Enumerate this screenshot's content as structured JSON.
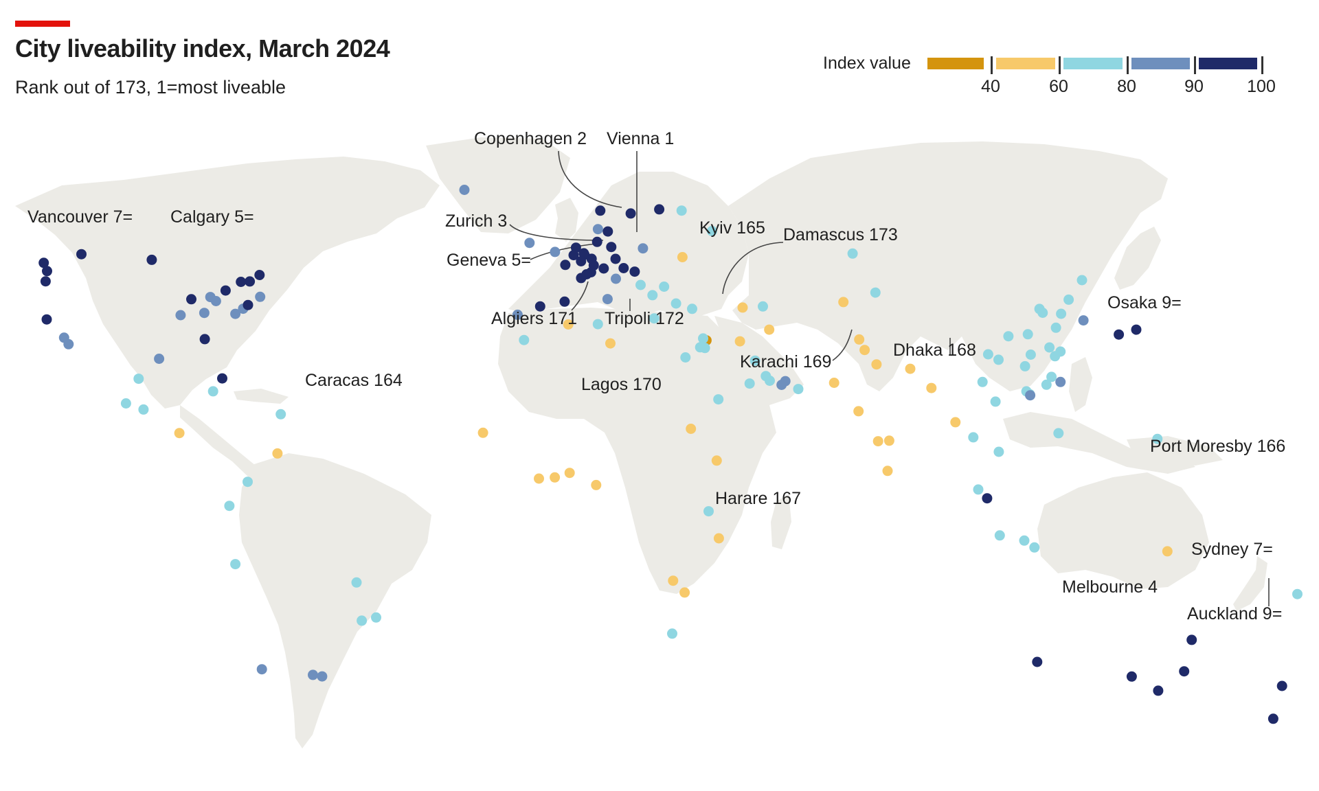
{
  "title": "City liveability index, March 2024",
  "subtitle": "Rank out of 173, 1=most liveable",
  "colors": {
    "accent": "#e3120b",
    "land": "#ecebe6",
    "band_lt40": "#d4940e",
    "band_40_60": "#f7c96a",
    "band_60_80": "#8fd6e1",
    "band_80_90": "#6e8fbd",
    "band_90_100": "#1f2a68"
  },
  "legend": {
    "title": "Index value",
    "ticks": [
      "40",
      "60",
      "80",
      "90",
      "100"
    ],
    "bands": [
      "lt40",
      "40_60",
      "60_80",
      "80_90",
      "90_100"
    ]
  },
  "labeled_cities": [
    {
      "city": "Vienna",
      "rank": "1"
    },
    {
      "city": "Copenhagen",
      "rank": "2"
    },
    {
      "city": "Zurich",
      "rank": "3"
    },
    {
      "city": "Melbourne",
      "rank": "4"
    },
    {
      "city": "Calgary",
      "rank": "5="
    },
    {
      "city": "Geneva",
      "rank": "5="
    },
    {
      "city": "Vancouver",
      "rank": "7="
    },
    {
      "city": "Sydney",
      "rank": "7="
    },
    {
      "city": "Osaka",
      "rank": "9="
    },
    {
      "city": "Auckland",
      "rank": "9="
    },
    {
      "city": "Caracas",
      "rank": "164"
    },
    {
      "city": "Kyiv",
      "rank": "165"
    },
    {
      "city": "Port Moresby",
      "rank": "166"
    },
    {
      "city": "Harare",
      "rank": "167"
    },
    {
      "city": "Dhaka",
      "rank": "168"
    },
    {
      "city": "Karachi",
      "rank": "169"
    },
    {
      "city": "Lagos",
      "rank": "170"
    },
    {
      "city": "Algiers",
      "rank": "171"
    },
    {
      "city": "Tripoli",
      "rank": "172"
    },
    {
      "city": "Damascus",
      "rank": "173"
    }
  ],
  "labels": {
    "vienna": "Vienna 1",
    "copenhagen": "Copenhagen 2",
    "zurich": "Zurich 3",
    "melbourne": "Melbourne 4",
    "calgary": "Calgary 5=",
    "geneva": "Geneva 5=",
    "vancouver": "Vancouver 7=",
    "sydney": "Sydney 7=",
    "osaka": "Osaka 9=",
    "auckland": "Auckland 9=",
    "caracas": "Caracas 164",
    "kyiv": "Kyiv 165",
    "port_moresby": "Port Moresby 166",
    "harare": "Harare 167",
    "dhaka": "Dhaka 168",
    "karachi": "Karachi 169",
    "lagos": "Lagos 170",
    "algiers": "Algiers 171",
    "tripoli": "Tripoli 172",
    "damascus": "Damascus 173"
  },
  "city_points": [
    {
      "lon": 16.37,
      "lat": 48.21,
      "band": "90_100"
    },
    {
      "lon": 12.57,
      "lat": 55.68,
      "band": "90_100"
    },
    {
      "lon": 8.54,
      "lat": 47.37,
      "band": "90_100"
    },
    {
      "lon": 144.96,
      "lat": -37.81,
      "band": "90_100"
    },
    {
      "lon": -114.07,
      "lat": 51.05,
      "band": "90_100"
    },
    {
      "lon": 6.14,
      "lat": 46.2,
      "band": "90_100"
    },
    {
      "lon": -123.12,
      "lat": 49.28,
      "band": "90_100"
    },
    {
      "lon": 151.21,
      "lat": -33.87,
      "band": "90_100"
    },
    {
      "lon": 135.5,
      "lat": 34.69,
      "band": "90_100"
    },
    {
      "lon": 174.76,
      "lat": -36.85,
      "band": "90_100"
    },
    {
      "lon": 139.69,
      "lat": 35.69,
      "band": "90_100"
    },
    {
      "lon": 4.9,
      "lat": 52.37,
      "band": "90_100"
    },
    {
      "lon": 13.4,
      "lat": 52.52,
      "band": "90_100"
    },
    {
      "lon": 11.58,
      "lat": 48.14,
      "band": "90_100"
    },
    {
      "lon": 8.68,
      "lat": 50.11,
      "band": "90_100"
    },
    {
      "lon": 9.99,
      "lat": 53.55,
      "band": "90_100"
    },
    {
      "lon": 6.96,
      "lat": 50.94,
      "band": "90_100"
    },
    {
      "lon": 6.78,
      "lat": 51.23,
      "band": "90_100"
    },
    {
      "lon": 9.18,
      "lat": 48.78,
      "band": "90_100"
    },
    {
      "lon": 10.75,
      "lat": 59.91,
      "band": "90_100"
    },
    {
      "lon": 18.07,
      "lat": 59.33,
      "band": "90_100"
    },
    {
      "lon": 24.94,
      "lat": 60.17,
      "band": "90_100"
    },
    {
      "lon": 4.35,
      "lat": 50.85,
      "band": "90_100"
    },
    {
      "lon": 6.13,
      "lat": 49.61,
      "band": "90_100"
    },
    {
      "lon": 7.45,
      "lat": 46.95,
      "band": "90_100"
    },
    {
      "lon": 14.42,
      "lat": 50.09,
      "band": "90_100"
    },
    {
      "lon": 19.04,
      "lat": 47.5,
      "band": "90_100"
    },
    {
      "lon": 2.35,
      "lat": 48.86,
      "band": "90_100"
    },
    {
      "lon": 2.17,
      "lat": 41.39,
      "band": "90_100"
    },
    {
      "lon": -3.7,
      "lat": 40.42,
      "band": "90_100"
    },
    {
      "lon": -79.38,
      "lat": 43.65,
      "band": "90_100"
    },
    {
      "lon": -73.57,
      "lat": 45.5,
      "band": "90_100"
    },
    {
      "lon": -75.7,
      "lat": 45.42,
      "band": "90_100"
    },
    {
      "lon": -97.14,
      "lat": 49.9,
      "band": "90_100"
    },
    {
      "lon": -71.21,
      "lat": 46.81,
      "band": "90_100"
    },
    {
      "lon": -87.63,
      "lat": 41.88,
      "band": "90_100"
    },
    {
      "lon": -84.39,
      "lat": 33.75,
      "band": "90_100"
    },
    {
      "lon": -80.19,
      "lat": 25.76,
      "band": "90_100"
    },
    {
      "lon": -74.0,
      "lat": 40.71,
      "band": "90_100"
    },
    {
      "lon": -122.33,
      "lat": 47.61,
      "band": "90_100"
    },
    {
      "lon": -122.68,
      "lat": 45.52,
      "band": "90_100"
    },
    {
      "lon": -122.42,
      "lat": 37.77,
      "band": "90_100"
    },
    {
      "lon": 115.86,
      "lat": -31.95,
      "band": "90_100"
    },
    {
      "lon": 138.6,
      "lat": -34.93,
      "band": "90_100"
    },
    {
      "lon": 153.03,
      "lat": -27.47,
      "band": "90_100"
    },
    {
      "lon": 172.64,
      "lat": -43.53,
      "band": "90_100"
    },
    {
      "lon": 103.82,
      "lat": 1.35,
      "band": "90_100"
    },
    {
      "lon": 10.2,
      "lat": 56.15,
      "band": "80_90"
    },
    {
      "lon": -6.26,
      "lat": 53.35,
      "band": "80_90"
    },
    {
      "lon": -0.13,
      "lat": 51.51,
      "band": "80_90"
    },
    {
      "lon": 21.01,
      "lat": 52.23,
      "band": "80_90"
    },
    {
      "lon": 12.5,
      "lat": 41.9,
      "band": "80_90"
    },
    {
      "lon": -9.14,
      "lat": 38.72,
      "band": "80_90"
    },
    {
      "lon": -21.94,
      "lat": 64.15,
      "band": "80_90"
    },
    {
      "lon": 14.5,
      "lat": 46.05,
      "band": "80_90"
    },
    {
      "lon": -77.04,
      "lat": 38.9,
      "band": "80_90"
    },
    {
      "lon": -71.06,
      "lat": 42.36,
      "band": "80_90"
    },
    {
      "lon": -83.05,
      "lat": 42.33,
      "band": "80_90"
    },
    {
      "lon": -81.69,
      "lat": 41.5,
      "band": "80_90"
    },
    {
      "lon": -84.51,
      "lat": 39.1,
      "band": "80_90"
    },
    {
      "lon": -75.17,
      "lat": 39.95,
      "band": "80_90"
    },
    {
      "lon": -90.2,
      "lat": 38.63,
      "band": "80_90"
    },
    {
      "lon": -95.37,
      "lat": 29.76,
      "band": "80_90"
    },
    {
      "lon": -118.24,
      "lat": 34.05,
      "band": "80_90"
    },
    {
      "lon": -117.16,
      "lat": 32.72,
      "band": "80_90"
    },
    {
      "lon": 55.27,
      "lat": 25.2,
      "band": "80_90"
    },
    {
      "lon": 54.37,
      "lat": 24.45,
      "band": "80_90"
    },
    {
      "lon": 126.98,
      "lat": 37.57,
      "band": "80_90"
    },
    {
      "lon": 121.47,
      "lat": 25.03,
      "band": "80_90"
    },
    {
      "lon": 114.17,
      "lat": 22.32,
      "band": "80_90"
    },
    {
      "lon": -70.65,
      "lat": -33.45,
      "band": "80_90"
    },
    {
      "lon": -56.16,
      "lat": -34.9,
      "band": "80_90"
    },
    {
      "lon": -58.38,
      "lat": -34.6,
      "band": "80_90"
    },
    {
      "lon": 37.62,
      "lat": 55.76,
      "band": "60_80"
    },
    {
      "lon": 30.32,
      "lat": 59.93,
      "band": "60_80"
    },
    {
      "lon": 26.1,
      "lat": 44.43,
      "band": "60_80"
    },
    {
      "lon": 23.32,
      "lat": 42.7,
      "band": "60_80"
    },
    {
      "lon": 20.46,
      "lat": 44.79,
      "band": "60_80"
    },
    {
      "lon": 23.73,
      "lat": 37.98,
      "band": "60_80"
    },
    {
      "lon": 28.98,
      "lat": 41.01,
      "band": "60_80"
    },
    {
      "lon": 32.85,
      "lat": 39.92,
      "band": "60_80"
    },
    {
      "lon": 10.18,
      "lat": 36.81,
      "band": "60_80"
    },
    {
      "lon": -7.59,
      "lat": 33.57,
      "band": "60_80"
    },
    {
      "lon": 35.5,
      "lat": 33.89,
      "band": "60_80"
    },
    {
      "lon": 35.93,
      "lat": 31.95,
      "band": "60_80"
    },
    {
      "lon": 34.78,
      "lat": 32.09,
      "band": "60_80"
    },
    {
      "lon": 31.24,
      "lat": 30.04,
      "band": "60_80"
    },
    {
      "lon": 50.59,
      "lat": 26.23,
      "band": "60_80"
    },
    {
      "lon": 51.53,
      "lat": 25.29,
      "band": "60_80"
    },
    {
      "lon": 47.98,
      "lat": 29.38,
      "band": "60_80"
    },
    {
      "lon": 58.39,
      "lat": 23.59,
      "band": "60_80"
    },
    {
      "lon": 46.68,
      "lat": 24.71,
      "band": "60_80"
    },
    {
      "lon": 39.17,
      "lat": 21.49,
      "band": "60_80"
    },
    {
      "lon": 49.87,
      "lat": 40.41,
      "band": "60_80"
    },
    {
      "lon": 71.45,
      "lat": 51.17,
      "band": "60_80"
    },
    {
      "lon": 76.95,
      "lat": 43.24,
      "band": "60_80"
    },
    {
      "lon": 116.41,
      "lat": 39.9,
      "band": "60_80"
    },
    {
      "lon": 117.19,
      "lat": 39.13,
      "band": "60_80"
    },
    {
      "lon": 121.47,
      "lat": 31.23,
      "band": "60_80"
    },
    {
      "lon": 120.15,
      "lat": 30.27,
      "band": "60_80"
    },
    {
      "lon": 118.8,
      "lat": 32.06,
      "band": "60_80"
    },
    {
      "lon": 113.26,
      "lat": 23.13,
      "band": "60_80"
    },
    {
      "lon": 114.06,
      "lat": 22.54,
      "band": "60_80"
    },
    {
      "lon": 104.07,
      "lat": 30.67,
      "band": "60_80"
    },
    {
      "lon": 106.55,
      "lat": 29.56,
      "band": "60_80"
    },
    {
      "lon": 108.94,
      "lat": 34.34,
      "band": "60_80"
    },
    {
      "lon": 114.3,
      "lat": 30.59,
      "band": "60_80"
    },
    {
      "lon": 123.43,
      "lat": 41.8,
      "band": "60_80"
    },
    {
      "lon": 126.64,
      "lat": 45.76,
      "band": "60_80"
    },
    {
      "lon": 121.62,
      "lat": 38.91,
      "band": "60_80"
    },
    {
      "lon": 120.38,
      "lat": 36.07,
      "band": "60_80"
    },
    {
      "lon": 113.62,
      "lat": 34.75,
      "band": "60_80"
    },
    {
      "lon": 112.94,
      "lat": 28.23,
      "band": "60_80"
    },
    {
      "lon": 119.3,
      "lat": 26.07,
      "band": "60_80"
    },
    {
      "lon": 118.09,
      "lat": 24.48,
      "band": "60_80"
    },
    {
      "lon": 102.71,
      "lat": 25.04,
      "band": "60_80"
    },
    {
      "lon": 105.83,
      "lat": 21.03,
      "band": "60_80"
    },
    {
      "lon": 106.63,
      "lat": 10.82,
      "band": "60_80"
    },
    {
      "lon": 100.5,
      "lat": 13.76,
      "band": "60_80"
    },
    {
      "lon": 101.69,
      "lat": 3.14,
      "band": "60_80"
    },
    {
      "lon": 120.98,
      "lat": 14.6,
      "band": "60_80"
    },
    {
      "lon": 106.85,
      "lat": -6.21,
      "band": "60_80"
    },
    {
      "lon": 112.75,
      "lat": -7.25,
      "band": "60_80"
    },
    {
      "lon": 115.2,
      "lat": -8.65,
      "band": "60_80"
    },
    {
      "lon": 178.44,
      "lat": -18.14,
      "band": "60_80"
    },
    {
      "lon": 144.79,
      "lat": 13.44,
      "band": "60_80"
    },
    {
      "lon": -99.13,
      "lat": 19.43,
      "band": "60_80"
    },
    {
      "lon": -100.31,
      "lat": 25.69,
      "band": "60_80"
    },
    {
      "lon": -103.35,
      "lat": 20.67,
      "band": "60_80"
    },
    {
      "lon": -82.38,
      "lat": 23.13,
      "band": "60_80"
    },
    {
      "lon": -66.11,
      "lat": 18.47,
      "band": "60_80"
    },
    {
      "lon": -74.07,
      "lat": 4.71,
      "band": "60_80"
    },
    {
      "lon": -78.47,
      "lat": -0.18,
      "band": "60_80"
    },
    {
      "lon": -77.04,
      "lat": -12.05,
      "band": "60_80"
    },
    {
      "lon": -47.88,
      "lat": -15.79,
      "band": "60_80"
    },
    {
      "lon": -46.63,
      "lat": -23.55,
      "band": "60_80"
    },
    {
      "lon": -43.17,
      "lat": -22.91,
      "band": "60_80"
    },
    {
      "lon": 28.05,
      "lat": -26.2,
      "band": "60_80"
    },
    {
      "lon": 36.82,
      "lat": -1.29,
      "band": "60_80"
    },
    {
      "lon": 45.0,
      "lat": 40.18,
      "band": "40_60"
    },
    {
      "lon": 30.52,
      "lat": 50.45,
      "band": "40_60"
    },
    {
      "lon": 36.3,
      "lat": 33.51,
      "band": "lt40"
    },
    {
      "lon": 3.06,
      "lat": 36.75,
      "band": "40_60"
    },
    {
      "lon": 13.19,
      "lat": 32.89,
      "band": "40_60"
    },
    {
      "lon": 3.38,
      "lat": 6.52,
      "band": "40_60"
    },
    {
      "lon": 31.05,
      "lat": -17.83,
      "band": "40_60"
    },
    {
      "lon": 67.01,
      "lat": 24.86,
      "band": "40_60"
    },
    {
      "lon": 90.41,
      "lat": 23.81,
      "band": "40_60"
    },
    {
      "lon": 147.18,
      "lat": -9.44,
      "band": "40_60"
    },
    {
      "lon": -66.9,
      "lat": 10.48,
      "band": "40_60"
    },
    {
      "lon": 51.39,
      "lat": 35.69,
      "band": "40_60"
    },
    {
      "lon": 44.36,
      "lat": 33.31,
      "band": "40_60"
    },
    {
      "lon": 69.24,
      "lat": 41.3,
      "band": "40_60"
    },
    {
      "lon": 74.34,
      "lat": 31.55,
      "band": "40_60"
    },
    {
      "lon": 77.21,
      "lat": 28.61,
      "band": "40_60"
    },
    {
      "lon": 72.88,
      "lat": 19.08,
      "band": "40_60"
    },
    {
      "lon": 77.59,
      "lat": 12.97,
      "band": "40_60"
    },
    {
      "lon": 80.27,
      "lat": 13.08,
      "band": "40_60"
    },
    {
      "lon": 79.86,
      "lat": 6.93,
      "band": "40_60"
    },
    {
      "lon": 85.32,
      "lat": 27.72,
      "band": "40_60"
    },
    {
      "lon": 73.05,
      "lat": 33.68,
      "band": "40_60"
    },
    {
      "lon": 96.2,
      "lat": 16.84,
      "band": "40_60"
    },
    {
      "lon": -17.45,
      "lat": 14.69,
      "band": "40_60"
    },
    {
      "lon": -4.01,
      "lat": 5.36,
      "band": "40_60"
    },
    {
      "lon": -0.19,
      "lat": 5.6,
      "band": "40_60"
    },
    {
      "lon": 9.77,
      "lat": 4.05,
      "band": "40_60"
    },
    {
      "lon": 38.76,
      "lat": 9.03,
      "band": "40_60"
    },
    {
      "lon": 32.56,
      "lat": 15.5,
      "band": "40_60"
    },
    {
      "lon": 28.28,
      "lat": -15.42,
      "band": "40_60"
    },
    {
      "lon": 39.28,
      "lat": -6.79,
      "band": "40_60"
    },
    {
      "lon": -90.51,
      "lat": 14.63,
      "band": "40_60"
    }
  ]
}
